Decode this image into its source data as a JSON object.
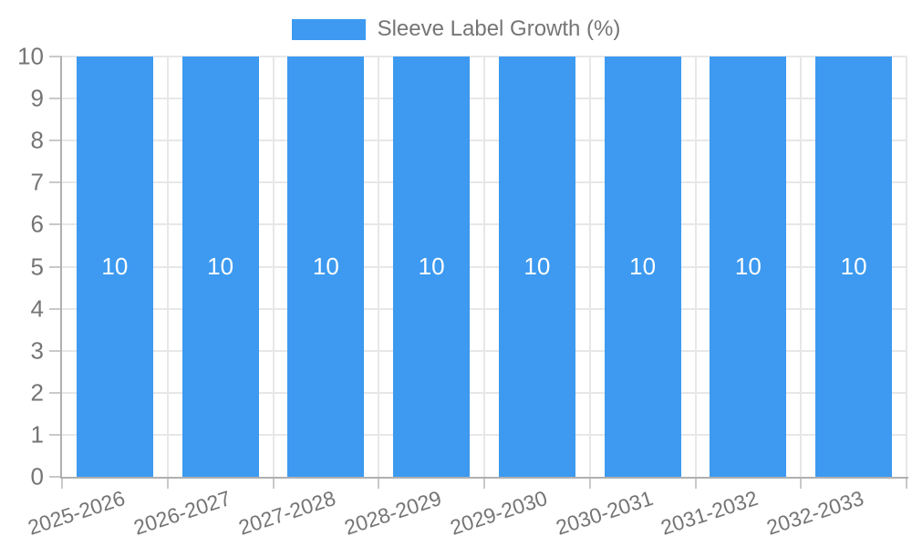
{
  "legend": {
    "label": "Sleeve Label Growth (%)"
  },
  "chart_data": {
    "type": "bar",
    "title": "",
    "xlabel": "",
    "ylabel": "",
    "categories": [
      "2025-2026",
      "2026-2027",
      "2027-2028",
      "2028-2029",
      "2029-2030",
      "2030-2031",
      "2031-2032",
      "2032-2033"
    ],
    "series": [
      {
        "name": "Sleeve Label Growth (%)",
        "values": [
          10,
          10,
          10,
          10,
          10,
          10,
          10,
          10
        ]
      }
    ],
    "bar_labels": [
      "10",
      "10",
      "10",
      "10",
      "10",
      "10",
      "10",
      "10"
    ],
    "ylim": [
      0,
      10
    ],
    "yticks": [
      0,
      1,
      2,
      3,
      4,
      5,
      6,
      7,
      8,
      9,
      10
    ],
    "grid": true,
    "legend_position": "top-center",
    "colors": {
      "bar": "#3D9AF0",
      "grid": "#e7e7e7",
      "axis": "#b0b0b0",
      "tick": "#c9c9c9",
      "tick_text": "#757575",
      "bar_label_text": "#ffffff"
    }
  }
}
